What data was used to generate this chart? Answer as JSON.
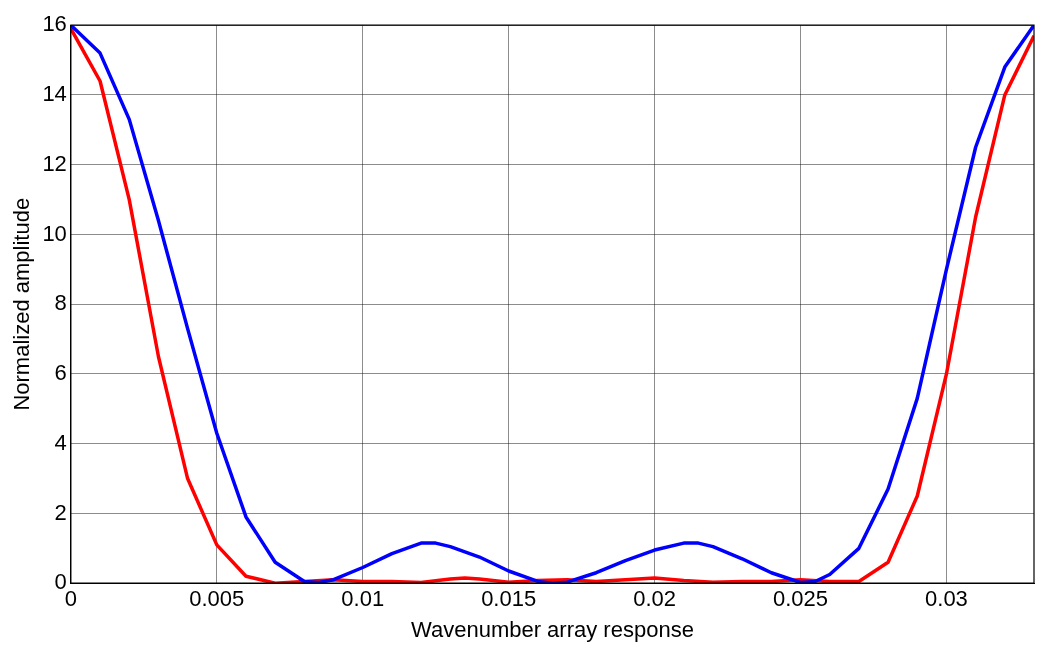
{
  "chart_data": {
    "type": "line",
    "xlabel": "Wavenumber array response",
    "ylabel": "Normalized amplitude",
    "xlim": [
      0,
      0.033
    ],
    "xticks": [
      0,
      0.005,
      0.01,
      0.015,
      0.02,
      0.025,
      0.03
    ],
    "ylim": [
      0,
      16
    ],
    "yticks": [
      0,
      2,
      4,
      6,
      8,
      10,
      12,
      14,
      16
    ],
    "grid": true,
    "legend": false,
    "marker": "none",
    "line_style": "solid",
    "series": [
      {
        "color": "#0000ff",
        "x": [
          0,
          0.001,
          0.002,
          0.003,
          0.004,
          0.005,
          0.006,
          0.007,
          0.008,
          0.0085,
          0.009,
          0.01,
          0.011,
          0.012,
          0.0125,
          0.013,
          0.014,
          0.015,
          0.016,
          0.0165,
          0.017,
          0.018,
          0.019,
          0.02,
          0.021,
          0.0215,
          0.022,
          0.023,
          0.024,
          0.025,
          0.0255,
          0.026,
          0.027,
          0.028,
          0.029,
          0.03,
          0.031,
          0.032,
          0.033
        ],
        "values": [
          16,
          15.2,
          13.3,
          10.4,
          7.3,
          4.3,
          1.9,
          0.6,
          0.05,
          0.02,
          0.1,
          0.45,
          0.85,
          1.15,
          1.15,
          1.05,
          0.75,
          0.35,
          0.05,
          0,
          0.03,
          0.3,
          0.65,
          0.95,
          1.15,
          1.15,
          1.05,
          0.7,
          0.3,
          0.02,
          0.05,
          0.25,
          1,
          2.7,
          5.3,
          9,
          12.5,
          14.8,
          16
        ]
      },
      {
        "color": "#ff0000",
        "x": [
          0,
          0.001,
          0.002,
          0.003,
          0.004,
          0.005,
          0.006,
          0.007,
          0.008,
          0.009,
          0.01,
          0.011,
          0.012,
          0.013,
          0.0135,
          0.014,
          0.015,
          0.016,
          0.017,
          0.018,
          0.019,
          0.02,
          0.021,
          0.022,
          0.023,
          0.024,
          0.025,
          0.026,
          0.027,
          0.028,
          0.029,
          0.03,
          0.031,
          0.032,
          0.033
        ],
        "values": [
          15.9,
          14.4,
          11,
          6.5,
          3,
          1.1,
          0.2,
          0,
          0.05,
          0.1,
          0.05,
          0.05,
          0.02,
          0.12,
          0.15,
          0.12,
          0.03,
          0.08,
          0.1,
          0.05,
          0.1,
          0.15,
          0.08,
          0.03,
          0.05,
          0.05,
          0.1,
          0.05,
          0.05,
          0.6,
          2.5,
          6,
          10.5,
          14,
          15.7
        ]
      }
    ]
  }
}
